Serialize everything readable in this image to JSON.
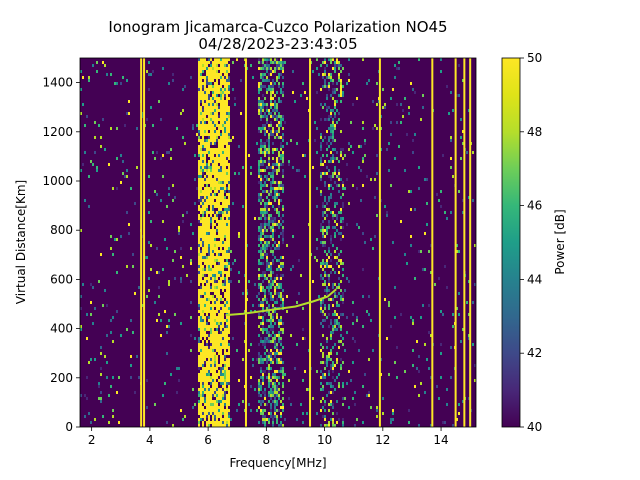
{
  "chart_data": {
    "type": "heatmap",
    "title_line1": "Ionogram Jicamarca-Cuzco Polarization NO45",
    "title_line2": "04/28/2023-23:43:05",
    "xlabel": "Frequency[MHz]",
    "ylabel": "Virtual Distance[Km]",
    "colorbar_label": "Power [dB]",
    "xlim": [
      1.6,
      15.2
    ],
    "ylim": [
      0,
      1500
    ],
    "xticks": [
      2,
      4,
      6,
      8,
      10,
      12,
      14
    ],
    "yticks": [
      0,
      200,
      400,
      600,
      800,
      1000,
      1200,
      1400
    ],
    "clim": [
      40,
      50
    ],
    "cticks": [
      40,
      42,
      44,
      46,
      48,
      50
    ],
    "colormap": "viridis",
    "background_color": "#440154",
    "saturated_color": "#fde725",
    "dense_bands_mhz": [
      {
        "from": 5.6,
        "to": 6.7,
        "density": 0.9
      },
      {
        "from": 7.7,
        "to": 8.6,
        "density": 0.55
      },
      {
        "from": 9.8,
        "to": 10.6,
        "density": 0.35
      }
    ],
    "persistent_lines_mhz": [
      3.7,
      3.8,
      7.3,
      9.5,
      11.9,
      13.7,
      14.5,
      14.8,
      15.0
    ],
    "echo_trace": [
      {
        "x": 6.6,
        "y": 455
      },
      {
        "x": 7.2,
        "y": 460
      },
      {
        "x": 7.8,
        "y": 470
      },
      {
        "x": 8.4,
        "y": 480
      },
      {
        "x": 9.0,
        "y": 490
      },
      {
        "x": 9.6,
        "y": 510
      },
      {
        "x": 10.1,
        "y": 530
      },
      {
        "x": 10.4,
        "y": 560
      }
    ]
  }
}
